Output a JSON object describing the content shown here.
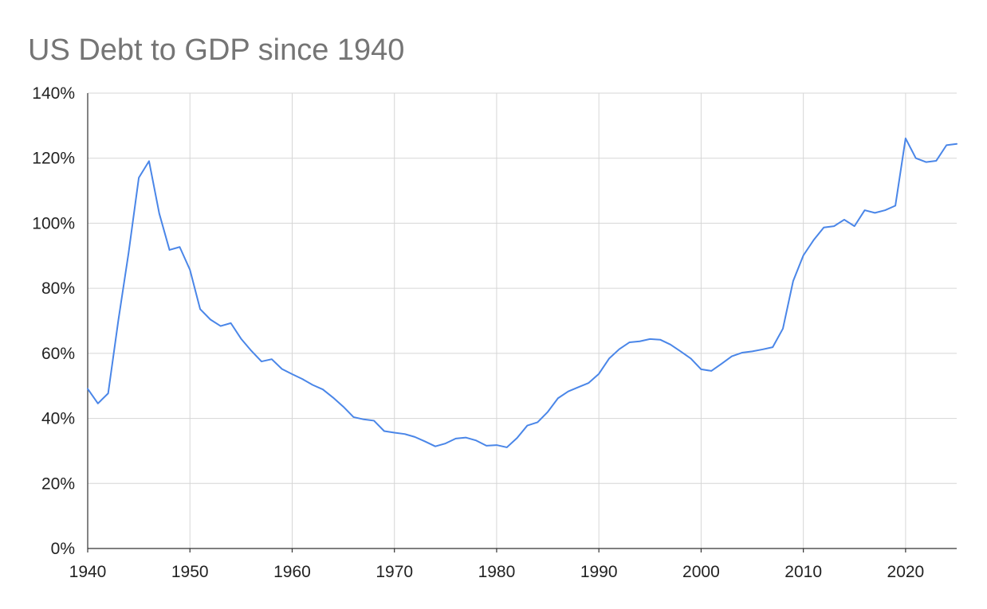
{
  "chart_data": {
    "type": "line",
    "title": "US Debt to GDP since 1940",
    "xlabel": "",
    "ylabel": "",
    "xlim": [
      1940,
      2025
    ],
    "ylim": [
      0,
      140
    ],
    "x_ticks": [
      "1940",
      "1950",
      "1960",
      "1970",
      "1980",
      "1990",
      "2000",
      "2010",
      "2020"
    ],
    "y_ticks": [
      "0%",
      "20%",
      "40%",
      "60%",
      "80%",
      "100%",
      "120%",
      "140%"
    ],
    "grid": true,
    "legend": "none",
    "series": [
      {
        "color": "#4a86e8",
        "points": [
          [
            1940,
            49.1
          ],
          [
            1941,
            44.6
          ],
          [
            1942,
            47.7
          ],
          [
            1943,
            70.2
          ],
          [
            1944,
            90.9
          ],
          [
            1945,
            114.0
          ],
          [
            1946,
            119.1
          ],
          [
            1947,
            103.0
          ],
          [
            1948,
            91.8
          ],
          [
            1949,
            92.7
          ],
          [
            1950,
            85.7
          ],
          [
            1951,
            73.6
          ],
          [
            1952,
            70.4
          ],
          [
            1953,
            68.4
          ],
          [
            1954,
            69.3
          ],
          [
            1955,
            64.5
          ],
          [
            1956,
            60.8
          ],
          [
            1957,
            57.5
          ],
          [
            1958,
            58.2
          ],
          [
            1959,
            55.2
          ],
          [
            1960,
            53.6
          ],
          [
            1961,
            52.1
          ],
          [
            1962,
            50.3
          ],
          [
            1963,
            48.9
          ],
          [
            1964,
            46.4
          ],
          [
            1965,
            43.6
          ],
          [
            1966,
            40.4
          ],
          [
            1967,
            39.7
          ],
          [
            1968,
            39.3
          ],
          [
            1969,
            36.1
          ],
          [
            1970,
            35.6
          ],
          [
            1971,
            35.2
          ],
          [
            1972,
            34.3
          ],
          [
            1973,
            32.9
          ],
          [
            1974,
            31.4
          ],
          [
            1975,
            32.3
          ],
          [
            1976,
            33.8
          ],
          [
            1977,
            34.1
          ],
          [
            1978,
            33.2
          ],
          [
            1979,
            31.6
          ],
          [
            1980,
            31.8
          ],
          [
            1981,
            31.1
          ],
          [
            1982,
            34.0
          ],
          [
            1983,
            37.8
          ],
          [
            1984,
            38.8
          ],
          [
            1985,
            42.0
          ],
          [
            1986,
            46.2
          ],
          [
            1987,
            48.3
          ],
          [
            1988,
            49.6
          ],
          [
            1989,
            50.9
          ],
          [
            1990,
            53.7
          ],
          [
            1991,
            58.4
          ],
          [
            1992,
            61.3
          ],
          [
            1993,
            63.4
          ],
          [
            1994,
            63.7
          ],
          [
            1995,
            64.4
          ],
          [
            1996,
            64.2
          ],
          [
            1997,
            62.7
          ],
          [
            1998,
            60.6
          ],
          [
            1999,
            58.4
          ],
          [
            2000,
            55.1
          ],
          [
            2001,
            54.6
          ],
          [
            2002,
            56.8
          ],
          [
            2003,
            59.1
          ],
          [
            2004,
            60.2
          ],
          [
            2005,
            60.6
          ],
          [
            2006,
            61.2
          ],
          [
            2007,
            61.9
          ],
          [
            2008,
            67.6
          ],
          [
            2009,
            82.2
          ],
          [
            2010,
            90.1
          ],
          [
            2011,
            94.8
          ],
          [
            2012,
            98.7
          ],
          [
            2013,
            99.1
          ],
          [
            2014,
            101.1
          ],
          [
            2015,
            99.1
          ],
          [
            2016,
            104.0
          ],
          [
            2017,
            103.2
          ],
          [
            2018,
            104.0
          ],
          [
            2019,
            105.4
          ],
          [
            2020,
            126.1
          ],
          [
            2021,
            120.0
          ],
          [
            2022,
            118.8
          ],
          [
            2023,
            119.2
          ],
          [
            2024,
            124.0
          ],
          [
            2025,
            124.4
          ]
        ]
      }
    ]
  }
}
